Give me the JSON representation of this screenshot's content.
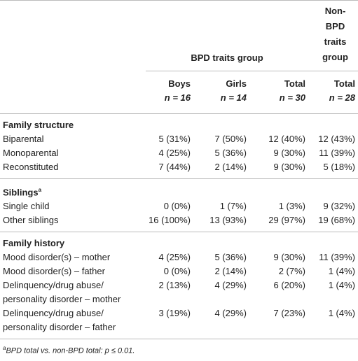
{
  "table": {
    "group_headers": [
      "BPD traits group",
      "Non-BPD traits group"
    ],
    "columns": [
      {
        "label": "Boys",
        "n": "n = 16"
      },
      {
        "label": "Girls",
        "n": "n = 14"
      },
      {
        "label": "Total",
        "n": "n = 30"
      },
      {
        "label": "Total",
        "n": "n = 28"
      }
    ],
    "sections": [
      {
        "title": "Family structure",
        "rows": [
          [
            "Biparental",
            "5 (31%)",
            "7 (50%)",
            "12 (40%)",
            "12 (43%)"
          ],
          [
            "Monoparental",
            "4 (25%)",
            "5 (36%)",
            "9 (30%)",
            "11 (39%)"
          ],
          [
            "Reconstituted",
            "7 (44%)",
            "2 (14%)",
            "9 (30%)",
            "5 (18%)"
          ]
        ]
      },
      {
        "title": "Siblings",
        "sup": "a",
        "rows": [
          [
            "Single child",
            "0 (0%)",
            "1 (7%)",
            "1 (3%)",
            "9 (32%)"
          ],
          [
            "Other siblings",
            "16 (100%)",
            "13 (93%)",
            "29 (97%)",
            "19 (68%)"
          ]
        ]
      },
      {
        "title": "Family history",
        "rows": [
          [
            "Mood disorder(s) – mother",
            "4 (25%)",
            "5 (36%)",
            "9 (30%)",
            "11 (39%)"
          ],
          [
            "Mood disorder(s) – father",
            "0 (0%)",
            "2 (14%)",
            "2 (7%)",
            "1 (4%)"
          ],
          [
            "Delinquency/drug abuse/ personality disorder – mother",
            "2 (13%)",
            "4 (29%)",
            "6 (20%)",
            "1 (4%)"
          ],
          [
            "Delinquency/drug abuse/ personality disorder – father",
            "3 (19%)",
            "4 (29%)",
            "7 (23%)",
            "1 (4%)"
          ]
        ]
      }
    ],
    "footnote": {
      "marker": "a",
      "text": "BPD total vs. non-BPD total: p ≤ 0.01."
    }
  }
}
